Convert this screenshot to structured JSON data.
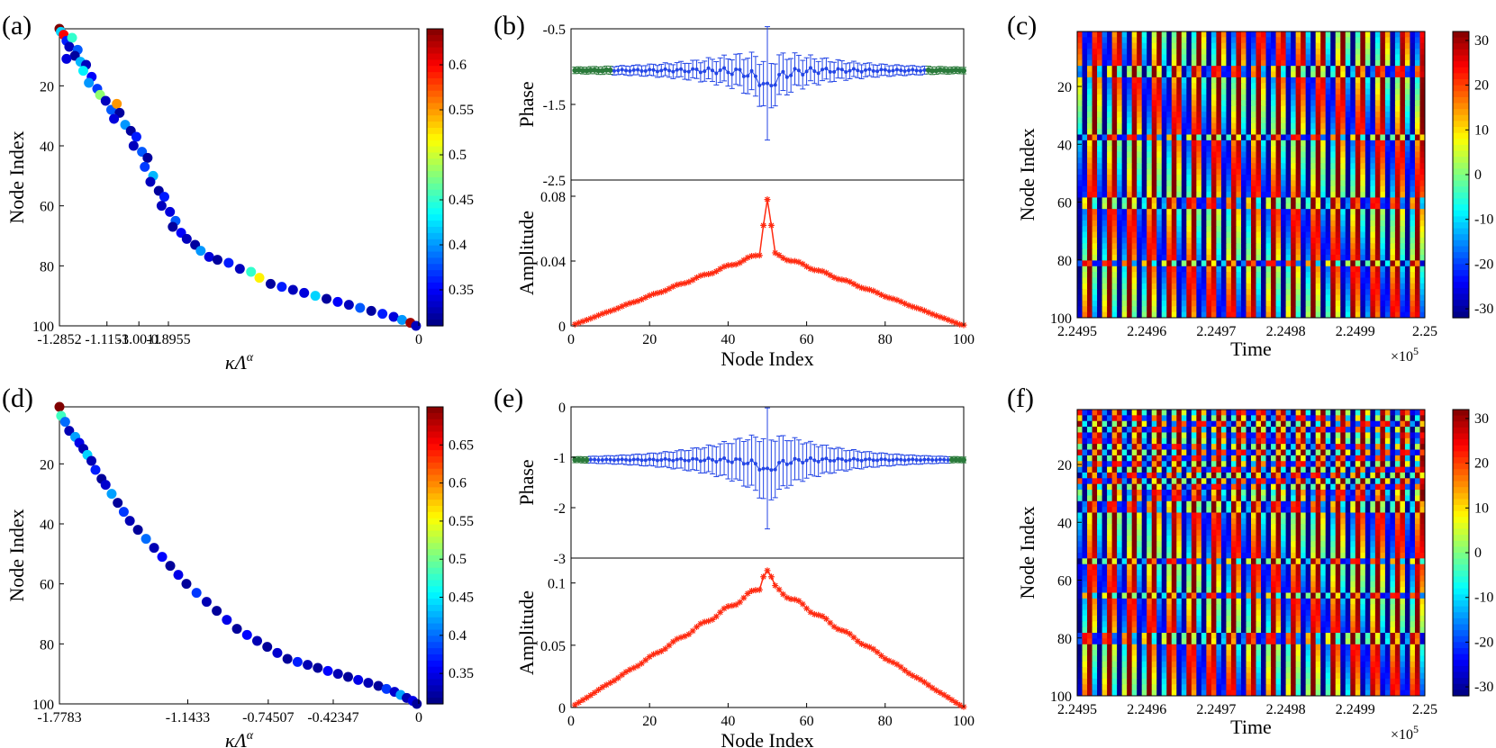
{
  "colors": {
    "scatter_cmap": "jet",
    "error_blue": "#2446e6",
    "edge_green": "#2a7a3a",
    "amp_red": "#ff2a10"
  },
  "chart_data": [
    {
      "id": "a",
      "panel_label": "(a)",
      "type": "scatter",
      "xlabel": "κΛ^α",
      "ylabel": "Node Index",
      "x_ticks": [
        "-1.2852",
        "-1.1153",
        "-1.0011",
        "-0.8955",
        "0"
      ],
      "x_tick_values": [
        -1.2852,
        -1.1153,
        -1.0011,
        -0.8955,
        0
      ],
      "xlim": [
        -1.2852,
        0
      ],
      "y_ticks": [
        "20",
        "40",
        "60",
        "80",
        "100"
      ],
      "y_tick_values": [
        20,
        40,
        60,
        80,
        100
      ],
      "ylim": [
        1,
        100
      ],
      "y_reversed": true,
      "colorbar": {
        "ticks": [
          "0.35",
          "0.4",
          "0.45",
          "0.5",
          "0.55",
          "0.6"
        ],
        "tick_values": [
          0.35,
          0.4,
          0.45,
          0.5,
          0.55,
          0.6
        ],
        "range": [
          0.31,
          0.64
        ]
      },
      "points": [
        [
          -1.2852,
          1,
          0.64
        ],
        [
          -1.28,
          2,
          0.42
        ],
        [
          -1.27,
          3,
          0.6
        ],
        [
          -1.26,
          5,
          0.36
        ],
        [
          -1.24,
          4,
          0.45
        ],
        [
          -1.25,
          7,
          0.33
        ],
        [
          -1.22,
          8,
          0.38
        ],
        [
          -1.23,
          10,
          0.32
        ],
        [
          -1.21,
          12,
          0.41
        ],
        [
          -1.26,
          11,
          0.34
        ],
        [
          -1.19,
          13,
          0.33
        ],
        [
          -1.2,
          15,
          0.43
        ],
        [
          -1.17,
          17,
          0.35
        ],
        [
          -1.18,
          19,
          0.4
        ],
        [
          -1.15,
          21,
          0.37
        ],
        [
          -1.14,
          23,
          0.48
        ],
        [
          -1.12,
          25,
          0.33
        ],
        [
          -1.1,
          28,
          0.38
        ],
        [
          -1.08,
          26,
          0.55
        ],
        [
          -1.07,
          29,
          0.32
        ],
        [
          -1.09,
          31,
          0.34
        ],
        [
          -1.05,
          33,
          0.4
        ],
        [
          -1.03,
          35,
          0.32
        ],
        [
          -1.01,
          37,
          0.36
        ],
        [
          -1.02,
          40,
          0.33
        ],
        [
          -0.99,
          42,
          0.38
        ],
        [
          -0.97,
          44,
          0.32
        ],
        [
          -0.98,
          47,
          0.37
        ],
        [
          -0.95,
          50,
          0.41
        ],
        [
          -0.96,
          52,
          0.33
        ],
        [
          -0.93,
          55,
          0.32
        ],
        [
          -0.91,
          57,
          0.36
        ],
        [
          -0.92,
          60,
          0.33
        ],
        [
          -0.89,
          62,
          0.34
        ],
        [
          -0.87,
          65,
          0.38
        ],
        [
          -0.88,
          67,
          0.32
        ],
        [
          -0.85,
          69,
          0.35
        ],
        [
          -0.83,
          71,
          0.33
        ],
        [
          -0.8,
          73,
          0.32
        ],
        [
          -0.78,
          75,
          0.4
        ],
        [
          -0.75,
          77,
          0.34
        ],
        [
          -0.72,
          78,
          0.32
        ],
        [
          -0.68,
          79,
          0.36
        ],
        [
          -0.64,
          81,
          0.33
        ],
        [
          -0.6,
          82,
          0.45
        ],
        [
          -0.57,
          84,
          0.52
        ],
        [
          -0.53,
          86,
          0.32
        ],
        [
          -0.49,
          87,
          0.36
        ],
        [
          -0.45,
          88,
          0.33
        ],
        [
          -0.41,
          89,
          0.34
        ],
        [
          -0.37,
          90,
          0.42
        ],
        [
          -0.33,
          91,
          0.32
        ],
        [
          -0.29,
          92,
          0.35
        ],
        [
          -0.25,
          93,
          0.33
        ],
        [
          -0.21,
          94,
          0.38
        ],
        [
          -0.17,
          95,
          0.32
        ],
        [
          -0.13,
          96,
          0.36
        ],
        [
          -0.09,
          97,
          0.34
        ],
        [
          -0.06,
          98,
          0.4
        ],
        [
          -0.03,
          99,
          0.63
        ],
        [
          -0.01,
          100,
          0.33
        ]
      ]
    },
    {
      "id": "b",
      "panel_label": "(b)",
      "type": "errorbar-line",
      "top": {
        "ylabel": "Phase",
        "y_ticks": [
          "-0.5",
          "-1.5",
          "-2.5"
        ],
        "y_tick_values": [
          -0.5,
          -1.5,
          -2.5
        ],
        "ylim": [
          -2.5,
          -0.5
        ],
        "center": -1.05,
        "half_spread_at_edge": 0.02,
        "half_spread_at_center": 0.28,
        "peak_node": 50,
        "peak_error": 0.75,
        "green_edge_nodes": 10
      },
      "bottom": {
        "ylabel": "Amplitude",
        "y_ticks": [
          "0",
          "0.04",
          "0.08"
        ],
        "y_tick_values": [
          0,
          0.04,
          0.08
        ],
        "ylim": [
          0,
          0.09
        ],
        "peak_value": 0.078,
        "shoulder_value": 0.046,
        "peak_node": 50
      },
      "xlabel": "Node Index",
      "x_ticks": [
        "0",
        "20",
        "40",
        "60",
        "80",
        "100"
      ],
      "x_tick_values": [
        0,
        20,
        40,
        60,
        80,
        100
      ],
      "xlim": [
        0,
        100
      ]
    },
    {
      "id": "c",
      "panel_label": "(c)",
      "type": "heatmap",
      "xlabel": "Time",
      "x_ticks": [
        "2.2495",
        "2.2496",
        "2.2497",
        "2.2498",
        "2.2499",
        "2.25"
      ],
      "x_tick_values": [
        2.2495,
        2.2496,
        2.2497,
        2.2498,
        2.2499,
        2.25
      ],
      "xlim": [
        2.2495,
        2.25
      ],
      "x_exponent": "×10^5",
      "ylabel": "Node Index",
      "y_ticks": [
        "20",
        "40",
        "60",
        "80",
        "100"
      ],
      "y_tick_values": [
        20,
        40,
        60,
        80,
        100
      ],
      "ylim": [
        1,
        100
      ],
      "colorbar": {
        "ticks": [
          "30",
          "20",
          "10",
          "0",
          "-10",
          "-20",
          "-30"
        ],
        "tick_values": [
          30,
          20,
          10,
          0,
          -10,
          -20,
          -30
        ],
        "range": [
          -32,
          32
        ]
      },
      "periods": 17,
      "defect_rows": [
        14,
        37,
        60,
        81
      ]
    },
    {
      "id": "d",
      "panel_label": "(d)",
      "type": "scatter",
      "xlabel": "κΛ^α",
      "ylabel": "Node Index",
      "x_ticks": [
        "-1.7783",
        "-1.1433",
        "-0.74507",
        "-0.42347",
        "0"
      ],
      "x_tick_values": [
        -1.7783,
        -1.1433,
        -0.74507,
        -0.42347,
        0
      ],
      "xlim": [
        -1.7783,
        0
      ],
      "y_ticks": [
        "20",
        "40",
        "60",
        "80",
        "100"
      ],
      "y_tick_values": [
        20,
        40,
        60,
        80,
        100
      ],
      "ylim": [
        1,
        100
      ],
      "y_reversed": true,
      "colorbar": {
        "ticks": [
          "0.35",
          "0.4",
          "0.45",
          "0.5",
          "0.55",
          "0.6",
          "0.65"
        ],
        "tick_values": [
          0.35,
          0.4,
          0.45,
          0.5,
          0.55,
          0.6,
          0.65
        ],
        "range": [
          0.31,
          0.7
        ]
      },
      "points": [
        [
          -1.7783,
          1,
          0.7
        ],
        [
          -1.77,
          4,
          0.48
        ],
        [
          -1.75,
          6,
          0.4
        ],
        [
          -1.73,
          9,
          0.33
        ],
        [
          -1.7,
          11,
          0.42
        ],
        [
          -1.68,
          13,
          0.35
        ],
        [
          -1.66,
          15,
          0.33
        ],
        [
          -1.64,
          17,
          0.44
        ],
        [
          -1.62,
          19,
          0.33
        ],
        [
          -1.6,
          22,
          0.37
        ],
        [
          -1.57,
          25,
          0.32
        ],
        [
          -1.55,
          27,
          0.34
        ],
        [
          -1.52,
          30,
          0.42
        ],
        [
          -1.49,
          33,
          0.32
        ],
        [
          -1.46,
          36,
          0.38
        ],
        [
          -1.43,
          39,
          0.33
        ],
        [
          -1.39,
          42,
          0.32
        ],
        [
          -1.35,
          45,
          0.4
        ],
        [
          -1.31,
          48,
          0.33
        ],
        [
          -1.27,
          51,
          0.36
        ],
        [
          -1.23,
          54,
          0.32
        ],
        [
          -1.19,
          57,
          0.35
        ],
        [
          -1.15,
          60,
          0.32
        ],
        [
          -1.1,
          63,
          0.38
        ],
        [
          -1.05,
          66,
          0.33
        ],
        [
          -1.0,
          69,
          0.32
        ],
        [
          -0.95,
          72,
          0.35
        ],
        [
          -0.9,
          75,
          0.32
        ],
        [
          -0.85,
          77,
          0.36
        ],
        [
          -0.8,
          79,
          0.33
        ],
        [
          -0.75,
          81,
          0.32
        ],
        [
          -0.7,
          83,
          0.34
        ],
        [
          -0.65,
          85,
          0.32
        ],
        [
          -0.6,
          86,
          0.37
        ],
        [
          -0.55,
          87,
          0.33
        ],
        [
          -0.5,
          88,
          0.32
        ],
        [
          -0.45,
          89,
          0.36
        ],
        [
          -0.4,
          90,
          0.33
        ],
        [
          -0.35,
          91,
          0.32
        ],
        [
          -0.3,
          92,
          0.35
        ],
        [
          -0.25,
          93,
          0.33
        ],
        [
          -0.2,
          94,
          0.32
        ],
        [
          -0.16,
          95,
          0.38
        ],
        [
          -0.12,
          96,
          0.34
        ],
        [
          -0.09,
          97,
          0.42
        ],
        [
          -0.06,
          98,
          0.33
        ],
        [
          -0.03,
          99,
          0.35
        ],
        [
          -0.01,
          100,
          0.32
        ]
      ]
    },
    {
      "id": "e",
      "panel_label": "(e)",
      "type": "errorbar-line",
      "top": {
        "ylabel": "Phase",
        "y_ticks": [
          "0",
          "-1",
          "-2",
          "-3"
        ],
        "y_tick_values": [
          0,
          -1,
          -2,
          -3
        ],
        "ylim": [
          -3,
          0
        ],
        "center": -1.05,
        "half_spread_at_edge": 0.02,
        "half_spread_at_center": 0.6,
        "peak_node": 50,
        "peak_error": 1.2,
        "green_edge_nodes": 4
      },
      "bottom": {
        "ylabel": "Amplitude",
        "y_ticks": [
          "0",
          "0.05",
          "0.1"
        ],
        "y_tick_values": [
          0,
          0.05,
          0.1
        ],
        "ylim": [
          0,
          0.12
        ],
        "peak_value": 0.11,
        "shoulder_value": 0.1,
        "peak_node": 50
      },
      "xlabel": "Node Index",
      "x_ticks": [
        "0",
        "20",
        "40",
        "60",
        "80",
        "100"
      ],
      "x_tick_values": [
        0,
        20,
        40,
        60,
        80,
        100
      ],
      "xlim": [
        0,
        100
      ]
    },
    {
      "id": "f",
      "panel_label": "(f)",
      "type": "heatmap",
      "xlabel": "Time",
      "x_ticks": [
        "2.2495",
        "2.2496",
        "2.2497",
        "2.2498",
        "2.2499",
        "2.25"
      ],
      "x_tick_values": [
        2.2495,
        2.2496,
        2.2497,
        2.2498,
        2.2499,
        2.25
      ],
      "xlim": [
        2.2495,
        2.25
      ],
      "x_exponent": "×10^5",
      "ylabel": "Node Index",
      "y_ticks": [
        "20",
        "40",
        "60",
        "80",
        "100"
      ],
      "y_tick_values": [
        20,
        40,
        60,
        80,
        100
      ],
      "ylim": [
        1,
        100
      ],
      "colorbar": {
        "ticks": [
          "30",
          "20",
          "10",
          "0",
          "-10",
          "-20",
          "-30"
        ],
        "tick_values": [
          30,
          20,
          10,
          0,
          -10,
          -20,
          -30
        ],
        "range": [
          -32,
          32
        ]
      },
      "periods": 17,
      "defect_rows": [
        22,
        34,
        53,
        65,
        80
      ],
      "disordered_rows": [
        1,
        30
      ]
    }
  ]
}
